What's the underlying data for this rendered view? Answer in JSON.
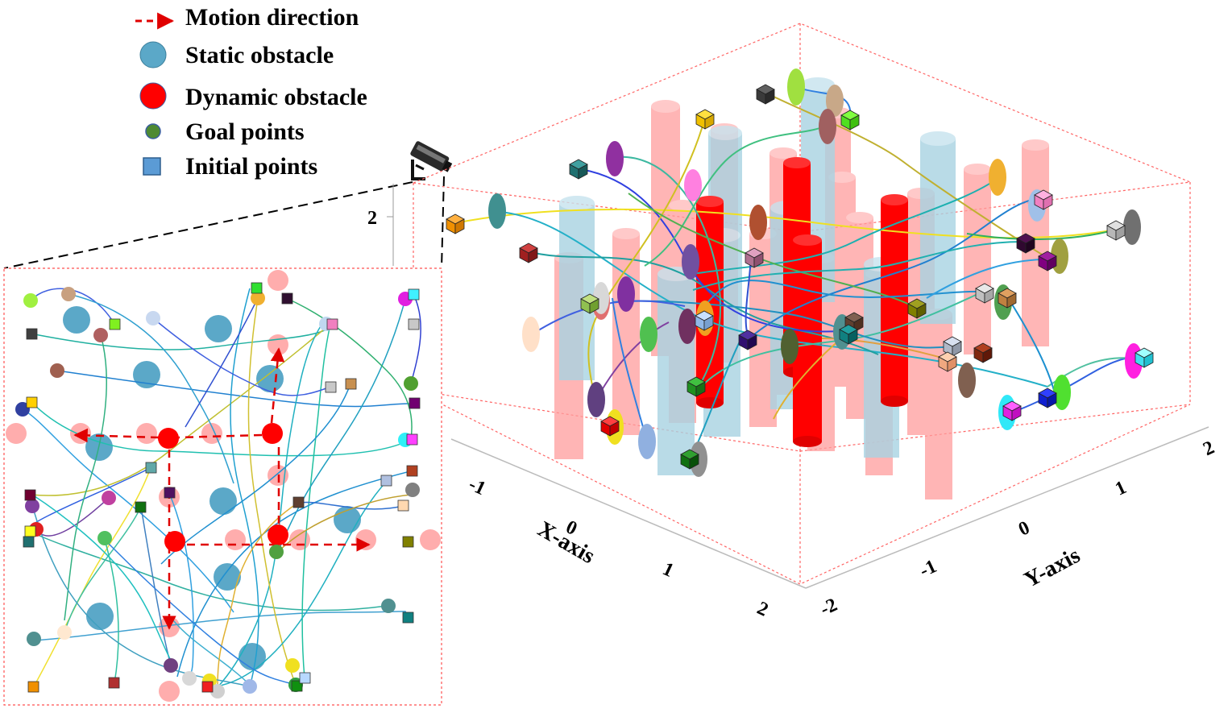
{
  "legend": {
    "motion": "Motion direction",
    "static": "Static obstacle",
    "dynamic": "Dynamic obstacle",
    "goal": "Goal points",
    "initial": "Initial points"
  },
  "axes": {
    "x_title": "X-axis",
    "y_title": "Y-axis",
    "z_tick": "2",
    "x_ticks": [
      "-1",
      "0",
      "1",
      "2"
    ],
    "y_ticks": [
      "-2",
      "-1",
      "0",
      "1",
      "2"
    ]
  },
  "icons": {
    "camera": "camera-icon"
  },
  "colors": {
    "static_obstacle": "#5ba8c8",
    "static_obstacle_3d": "#a8d3e2",
    "dynamic_obstacle": "#ff0000",
    "dynamic_obstacle_faded": "#ff9d9d",
    "motion_arrow": "#e00000",
    "goal": "#4e8a33",
    "initial": "#5b9bd5",
    "frame": "#ff5050"
  }
}
